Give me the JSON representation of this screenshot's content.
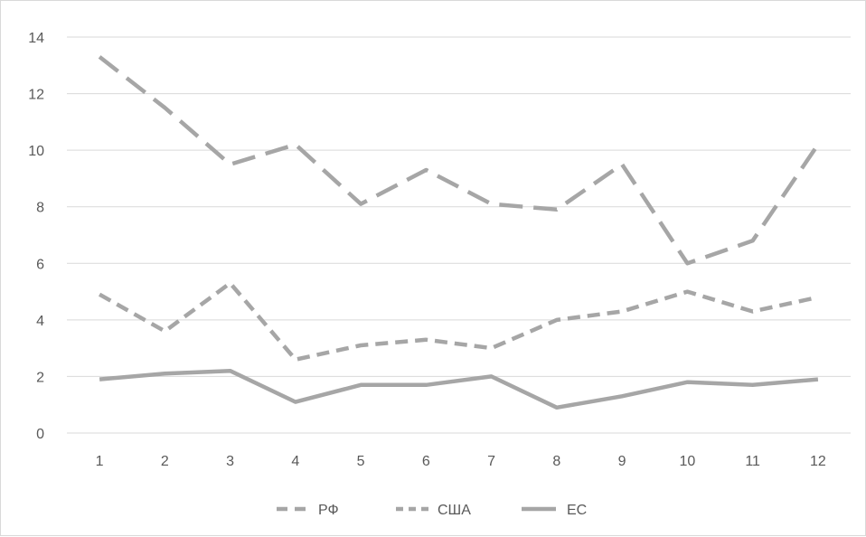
{
  "chart_data": {
    "type": "line",
    "title": "",
    "xlabel": "",
    "ylabel": "",
    "categories": [
      "1",
      "2",
      "3",
      "4",
      "5",
      "6",
      "7",
      "8",
      "9",
      "10",
      "11",
      "12"
    ],
    "ylim": [
      0,
      14
    ],
    "yticks": [
      "0",
      "2",
      "4",
      "6",
      "8",
      "10",
      "12",
      "14"
    ],
    "grid": "horizontal",
    "legend_position": "bottom",
    "series": [
      {
        "name": "РФ",
        "style": "long-dash",
        "color": "#a6a6a6",
        "values": [
          13.3,
          11.5,
          9.5,
          10.2,
          8.1,
          9.3,
          8.1,
          7.9,
          9.5,
          6.0,
          6.8,
          10.2
        ]
      },
      {
        "name": "США",
        "style": "short-dash",
        "color": "#a6a6a6",
        "values": [
          4.9,
          3.6,
          5.3,
          2.6,
          3.1,
          3.3,
          3.0,
          4.0,
          4.3,
          5.0,
          4.3,
          4.8
        ]
      },
      {
        "name": "ЕС",
        "style": "solid",
        "color": "#a6a6a6",
        "values": [
          1.9,
          2.1,
          2.2,
          1.1,
          1.7,
          1.7,
          2.0,
          0.9,
          1.3,
          1.8,
          1.7,
          1.9
        ]
      }
    ]
  }
}
